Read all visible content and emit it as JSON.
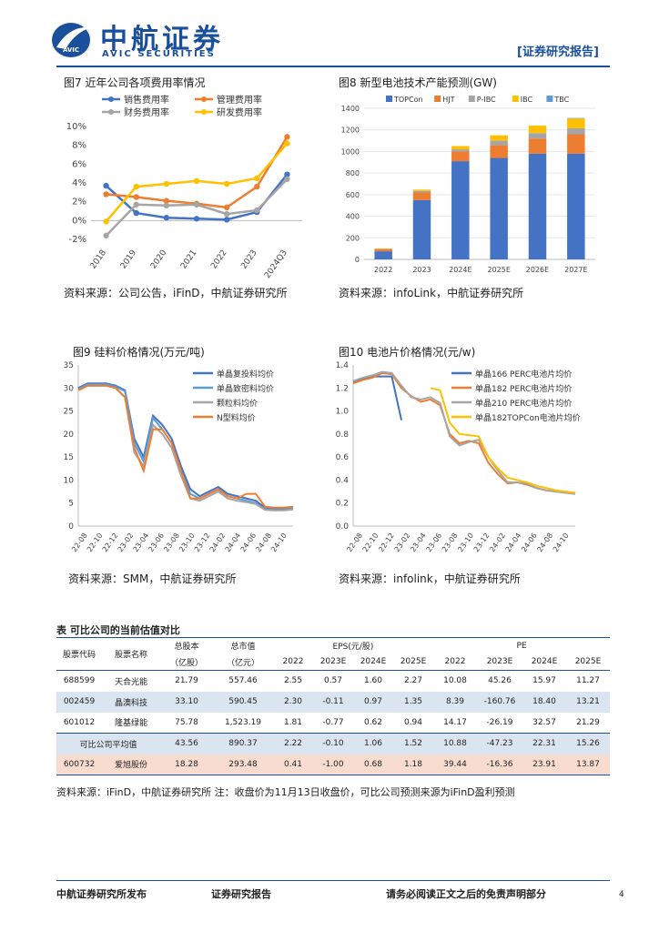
{
  "header": {
    "logo_cn": "中航证券",
    "logo_en": "AVIC SECURITIES",
    "badge": "AVIC",
    "report_type": "[证券研究报告]"
  },
  "fig7": {
    "title": "图7 近年公司各项费用率情况",
    "source": "资料来源：公司公告，iFinD，中航证券研究所",
    "chart_data": {
      "type": "line",
      "categories": [
        "2018",
        "2019",
        "2020",
        "2021",
        "2022",
        "2023",
        "2024Q3"
      ],
      "yticks": [
        "-2%",
        "0%",
        "2%",
        "4%",
        "6%",
        "8%",
        "10%"
      ],
      "ylim": [
        -2,
        10
      ],
      "series": [
        {
          "name": "销售费用率",
          "color": "#4472c4",
          "values": [
            3.7,
            0.8,
            0.3,
            0.2,
            0.1,
            0.9,
            4.9
          ]
        },
        {
          "name": "管理费用率",
          "color": "#ed7d31",
          "values": [
            2.8,
            2.5,
            2.1,
            1.8,
            1.4,
            3.6,
            8.9
          ]
        },
        {
          "name": "财务费用率",
          "color": "#a5a5a5",
          "values": [
            -1.6,
            1.7,
            1.6,
            1.7,
            0.7,
            1.1,
            4.4
          ]
        },
        {
          "name": "研发费用率",
          "color": "#ffc000",
          "values": [
            -0.1,
            3.6,
            3.9,
            4.2,
            3.9,
            4.5,
            8.2
          ]
        }
      ]
    }
  },
  "fig8": {
    "title": "图8 新型电池技术产能预测(GW)",
    "source": "资料来源：infoLink，中航证券研究所",
    "chart_data": {
      "type": "bar",
      "stacked": true,
      "categories": [
        "2022",
        "2023",
        "2024E",
        "2025E",
        "2026E",
        "2027E"
      ],
      "yticks": [
        "0",
        "200",
        "400",
        "600",
        "800",
        "1000",
        "1200",
        "1400"
      ],
      "ylim": [
        0,
        1400
      ],
      "series": [
        {
          "name": "TOPCon",
          "color": "#4472c4",
          "values": [
            75,
            550,
            910,
            940,
            980,
            980
          ]
        },
        {
          "name": "HJT",
          "color": "#ed7d31",
          "values": [
            20,
            70,
            90,
            120,
            140,
            180
          ]
        },
        {
          "name": "P-IBC",
          "color": "#a5a5a5",
          "values": [
            5,
            15,
            20,
            40,
            50,
            55
          ]
        },
        {
          "name": "IBC",
          "color": "#ffc000",
          "values": [
            3,
            12,
            30,
            50,
            70,
            90
          ]
        },
        {
          "name": "TBC",
          "color": "#5b9bd5",
          "values": [
            0,
            0,
            0,
            0,
            0,
            5
          ]
        }
      ]
    }
  },
  "fig9": {
    "title": "图9 硅料价格情况(万元/吨)",
    "source": "资料来源：SMM，中航证券研究所",
    "chart_data": {
      "type": "line",
      "xticks": [
        "22-08",
        "22-10",
        "22-12",
        "23-02",
        "23-04",
        "23-06",
        "23-08",
        "23-10",
        "23-12",
        "24-02",
        "24-04",
        "24-06",
        "24-08",
        "24-10"
      ],
      "yticks": [
        "0",
        "5",
        "10",
        "15",
        "20",
        "25",
        "30",
        "35"
      ],
      "ylim": [
        0,
        35
      ],
      "series": [
        {
          "name": "单晶复投料均价",
          "color": "#4472c4",
          "values": [
            30,
            31,
            31,
            31,
            30.5,
            29.5,
            19,
            15,
            24,
            22,
            19,
            13,
            8,
            6.5,
            7.5,
            8.5,
            7,
            6.5,
            6,
            5.5,
            4,
            3.8,
            3.8,
            4
          ]
        },
        {
          "name": "单晶致密料均价",
          "color": "#5b9bd5",
          "values": [
            29.8,
            30.8,
            30.8,
            30.8,
            30.3,
            29.3,
            18,
            14,
            23.5,
            21,
            18,
            12,
            7,
            6,
            7,
            8,
            6.5,
            6,
            5.5,
            5,
            3.7,
            3.5,
            3.5,
            3.8
          ]
        },
        {
          "name": "颗粒料均价",
          "color": "#a5a5a5",
          "values": [
            29.5,
            30.5,
            30.5,
            30.5,
            30,
            28,
            16,
            13,
            22,
            20,
            17,
            11,
            6,
            5.5,
            6.5,
            7.5,
            6,
            5.5,
            5.2,
            4.8,
            3.5,
            3.4,
            3.4,
            3.6
          ]
        },
        {
          "name": "N型料均价",
          "color": "#ed7d31",
          "values": [
            29.5,
            30.5,
            30.5,
            30.5,
            30,
            28,
            17,
            12,
            21,
            21,
            18,
            12,
            6,
            6,
            7,
            8,
            6.5,
            6,
            7,
            7,
            4.2,
            4,
            4,
            4.2
          ]
        }
      ]
    }
  },
  "fig10": {
    "title": "图10 电池片价格情况(元/w)",
    "source": "资料来源：infolink，中航证券研究所",
    "chart_data": {
      "type": "line",
      "xticks": [
        "22-08",
        "22-10",
        "22-12",
        "23-02",
        "23-04",
        "23-06",
        "23-08",
        "23-10",
        "23-12",
        "24-02",
        "24-04",
        "24-06",
        "24-08",
        "24-10"
      ],
      "yticks": [
        "0.0",
        "0.2",
        "0.4",
        "0.6",
        "0.8",
        "1.0",
        "1.2",
        "1.4"
      ],
      "ylim": [
        0,
        1.4
      ],
      "series": [
        {
          "name": "单晶166 PERC电池片均价",
          "color": "#4472c4",
          "values": [
            1.25,
            1.28,
            1.3,
            1.3,
            1.3,
            0.92,
            null,
            null,
            null,
            null,
            null,
            null,
            null,
            null,
            null,
            null,
            null,
            null,
            null,
            null,
            null,
            null,
            null,
            null
          ]
        },
        {
          "name": "单晶182 PERC电池片均价",
          "color": "#ed7d31",
          "values": [
            1.24,
            1.27,
            1.29,
            1.33,
            1.32,
            1.2,
            1.13,
            1.08,
            1.1,
            1.05,
            0.8,
            0.72,
            0.74,
            0.72,
            0.55,
            0.45,
            0.37,
            0.38,
            0.36,
            0.33,
            0.31,
            0.3,
            0.29,
            0.28
          ]
        },
        {
          "name": "单晶210 PERC电池片均价",
          "color": "#a5a5a5",
          "values": [
            1.26,
            1.29,
            1.31,
            1.34,
            1.33,
            1.22,
            1.12,
            1.1,
            1.12,
            1.07,
            0.78,
            0.7,
            0.73,
            0.75,
            0.6,
            0.48,
            0.38,
            0.38,
            0.37,
            0.33,
            0.31,
            0.3,
            0.29,
            0.28
          ]
        },
        {
          "name": "单晶182TOPCon电池片均价",
          "color": "#ffc000",
          "values": [
            null,
            null,
            null,
            null,
            null,
            null,
            null,
            null,
            1.2,
            1.18,
            0.9,
            0.8,
            0.79,
            0.78,
            0.6,
            0.5,
            0.42,
            0.4,
            0.38,
            0.35,
            0.33,
            0.31,
            0.3,
            0.29
          ]
        }
      ]
    }
  },
  "table": {
    "title": "表  可比公司的当前估值对比",
    "headers": {
      "code": "股票代码",
      "name": "股票名称",
      "total_share": "总股本",
      "total_share_unit": "（亿股）",
      "mktcap": "总市值",
      "mktcap_unit": "（亿元）",
      "eps": "EPS(元/股)",
      "pe": "PE",
      "years": [
        "2022",
        "2023E",
        "2024E",
        "2025E"
      ]
    },
    "rows": [
      {
        "code": "688599",
        "name": "天合光能",
        "share": "21.79",
        "cap": "557.46",
        "eps": [
          "2.55",
          "0.57",
          "1.60",
          "2.27"
        ],
        "pe": [
          "10.08",
          "45.26",
          "15.97",
          "11.27"
        ]
      },
      {
        "code": "002459",
        "name": "晶澳科技",
        "share": "33.10",
        "cap": "590.45",
        "eps": [
          "2.30",
          "-0.11",
          "0.97",
          "1.35"
        ],
        "pe": [
          "8.39",
          "-160.76",
          "18.40",
          "13.21"
        ]
      },
      {
        "code": "601012",
        "name": "隆基绿能",
        "share": "75.78",
        "cap": "1,523.19",
        "eps": [
          "1.81",
          "-0.77",
          "0.62",
          "0.94"
        ],
        "pe": [
          "14.17",
          "-26.19",
          "32.57",
          "21.29"
        ]
      }
    ],
    "avg": {
      "label": "可比公司平均值",
      "share": "43.56",
      "cap": "890.37",
      "eps": [
        "2.22",
        "-0.10",
        "1.06",
        "1.52"
      ],
      "pe": [
        "10.88",
        "-47.23",
        "22.31",
        "15.26"
      ]
    },
    "target": {
      "code": "600732",
      "name": "爱旭股份",
      "share": "18.28",
      "cap": "293.48",
      "eps": [
        "0.41",
        "-1.00",
        "0.68",
        "1.18"
      ],
      "pe": [
        "39.44",
        "-16.36",
        "23.91",
        "13.87"
      ]
    },
    "source": "资料来源：iFinD，中航证券研究所    注：收盘价为11月13日收盘价，可比公司预测来源为iFinD盈利预测"
  },
  "footer": {
    "left": "中航证券研究所发布",
    "mid": "证券研究报告",
    "right": "请务必阅读正文之后的免责声明部分",
    "page": "4"
  },
  "colors": {
    "brand": "#1a4f9c",
    "line": "#1a4f9c",
    "row_alt": "#dbe5f1",
    "row_target": "#f8dcd0"
  }
}
